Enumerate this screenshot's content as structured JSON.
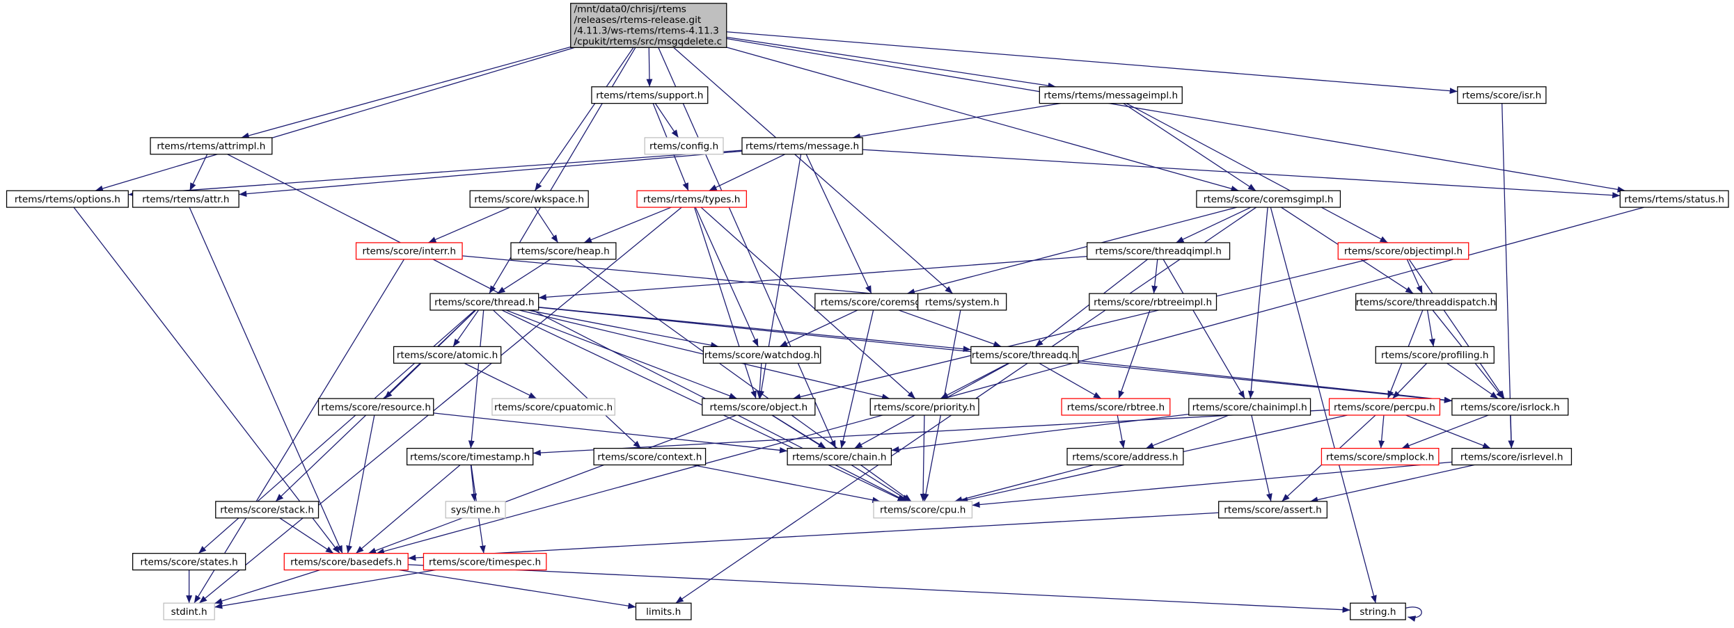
{
  "nodes": [
    {
      "label": [
        "/mnt/data0/chrisj/rtems",
        "/releases/rtems-release.git",
        "/4.11.3/ws-rtems/rtems-4.11.3",
        "/cpukit/rtems/src/msgqdelete.c"
      ]
    },
    {
      "label": "rtems/rtems/support.h"
    },
    {
      "label": "rtems/rtems/messageimpl.h"
    },
    {
      "label": "rtems/score/isr.h"
    },
    {
      "label": "rtems/rtems/attrimpl.h"
    },
    {
      "label": "rtems/config.h"
    },
    {
      "label": "rtems/rtems/message.h"
    },
    {
      "label": "rtems/rtems/options.h"
    },
    {
      "label": "rtems/rtems/attr.h"
    },
    {
      "label": "rtems/score/wkspace.h"
    },
    {
      "label": "rtems/rtems/types.h"
    },
    {
      "label": "rtems/score/coremsgimpl.h"
    },
    {
      "label": "rtems/rtems/status.h"
    },
    {
      "label": "rtems/score/interr.h"
    },
    {
      "label": "rtems/score/heap.h"
    },
    {
      "label": "rtems/score/threadqimpl.h"
    },
    {
      "label": "rtems/score/objectimpl.h"
    },
    {
      "label": "rtems/score/thread.h"
    },
    {
      "label": "rtems/score/coremsg.h"
    },
    {
      "label": "rtems/system.h"
    },
    {
      "label": "rtems/score/rbtreeimpl.h"
    },
    {
      "label": "rtems/score/threaddispatch.h"
    },
    {
      "label": "rtems/score/atomic.h"
    },
    {
      "label": "rtems/score/watchdog.h"
    },
    {
      "label": "rtems/score/threadq.h"
    },
    {
      "label": "rtems/score/profiling.h"
    },
    {
      "label": "rtems/score/resource.h"
    },
    {
      "label": "rtems/score/cpuatomic.h"
    },
    {
      "label": "rtems/score/object.h"
    },
    {
      "label": "rtems/score/priority.h"
    },
    {
      "label": "rtems/score/rbtree.h"
    },
    {
      "label": "rtems/score/chainimpl.h"
    },
    {
      "label": "rtems/score/percpu.h"
    },
    {
      "label": "rtems/score/isrlock.h"
    },
    {
      "label": "rtems/score/timestamp.h"
    },
    {
      "label": "rtems/score/context.h"
    },
    {
      "label": "rtems/score/chain.h"
    },
    {
      "label": "rtems/score/address.h"
    },
    {
      "label": "rtems/score/smplock.h"
    },
    {
      "label": "rtems/score/isrlevel.h"
    },
    {
      "label": "rtems/score/stack.h"
    },
    {
      "label": "sys/time.h"
    },
    {
      "label": "rtems/score/cpu.h"
    },
    {
      "label": "rtems/score/assert.h"
    },
    {
      "label": "rtems/score/states.h"
    },
    {
      "label": "rtems/score/basedefs.h"
    },
    {
      "label": "rtems/score/timespec.h"
    },
    {
      "label": "stdint.h"
    },
    {
      "label": "limits.h"
    },
    {
      "label": "string.h"
    }
  ]
}
